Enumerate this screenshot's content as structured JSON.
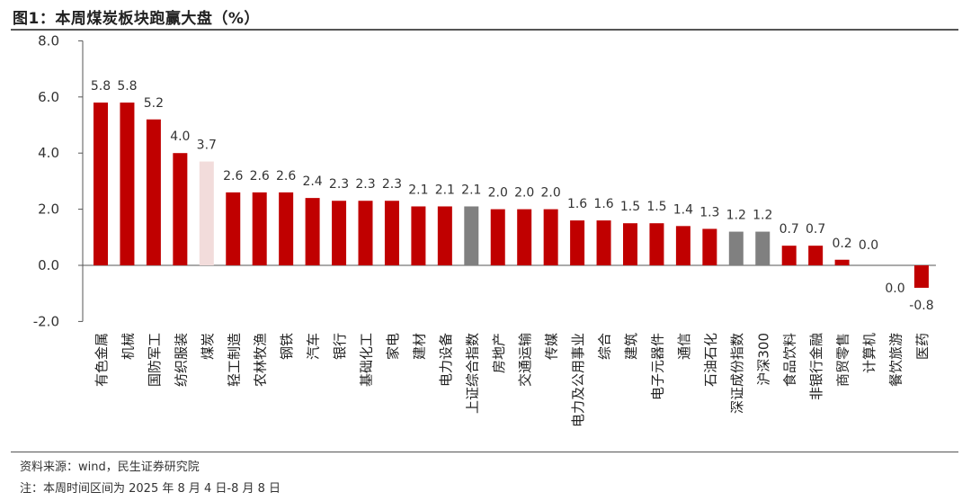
{
  "title": "图1：本周煤炭板块跑赢大盘（%）",
  "source_note": "资料来源：wind，民生证券研究院",
  "period_note": "注：本周时间区间为 2025 年 8 月 4 日-8 月 8 日",
  "colors": {
    "sector": "#C00000",
    "highlight": "#F2DCDB",
    "index": "#808080"
  },
  "chart_data": {
    "type": "bar",
    "title": "图1：本周煤炭板块跑赢大盘（%）",
    "xlabel": "",
    "ylabel": "",
    "ylim": [
      -2.0,
      8.0
    ],
    "yticks": [
      "8.0",
      "6.0",
      "4.0",
      "2.0",
      "0.0",
      "-2.0"
    ],
    "categories": [
      "有色金属",
      "机械",
      "国防军工",
      "纺织服装",
      "煤炭",
      "轻工制造",
      "农林牧渔",
      "钢铁",
      "汽车",
      "银行",
      "基础化工",
      "家电",
      "建材",
      "电力设备",
      "上证综合指数",
      "房地产",
      "交通运输",
      "传媒",
      "电力及公用事业",
      "综合",
      "建筑",
      "电子元器件",
      "通信",
      "石油石化",
      "深证成份指数",
      "沪深300",
      "食品饮料",
      "非银行金融",
      "商贸零售",
      "计算机",
      "餐饮旅游",
      "医药"
    ],
    "values": [
      5.8,
      5.8,
      5.2,
      4.0,
      3.7,
      2.6,
      2.6,
      2.6,
      2.4,
      2.3,
      2.3,
      2.3,
      2.1,
      2.1,
      2.1,
      2.0,
      2.0,
      2.0,
      1.6,
      1.6,
      1.5,
      1.5,
      1.4,
      1.3,
      1.2,
      1.2,
      0.7,
      0.7,
      0.2,
      0.0,
      0.0,
      -0.8
    ],
    "labels": [
      "5.8",
      "5.8",
      "5.2",
      "4.0",
      "3.7",
      "2.6",
      "2.6",
      "2.6",
      "2.4",
      "2.3",
      "2.3",
      "2.3",
      "2.1",
      "2.1",
      "2.1",
      "2.0",
      "2.0",
      "2.0",
      "1.6",
      "1.6",
      "1.5",
      "1.5",
      "1.4",
      "1.3",
      "1.2",
      "1.2",
      "0.7",
      "0.7",
      "0.2",
      "0.0",
      "0.0",
      "-0.8"
    ],
    "kinds": [
      "sector",
      "sector",
      "sector",
      "sector",
      "highlight",
      "sector",
      "sector",
      "sector",
      "sector",
      "sector",
      "sector",
      "sector",
      "sector",
      "sector",
      "index",
      "sector",
      "sector",
      "sector",
      "sector",
      "sector",
      "sector",
      "sector",
      "sector",
      "sector",
      "index",
      "index",
      "sector",
      "sector",
      "sector",
      "sector",
      "sector",
      "sector"
    ],
    "grid": false,
    "legend": "none"
  }
}
